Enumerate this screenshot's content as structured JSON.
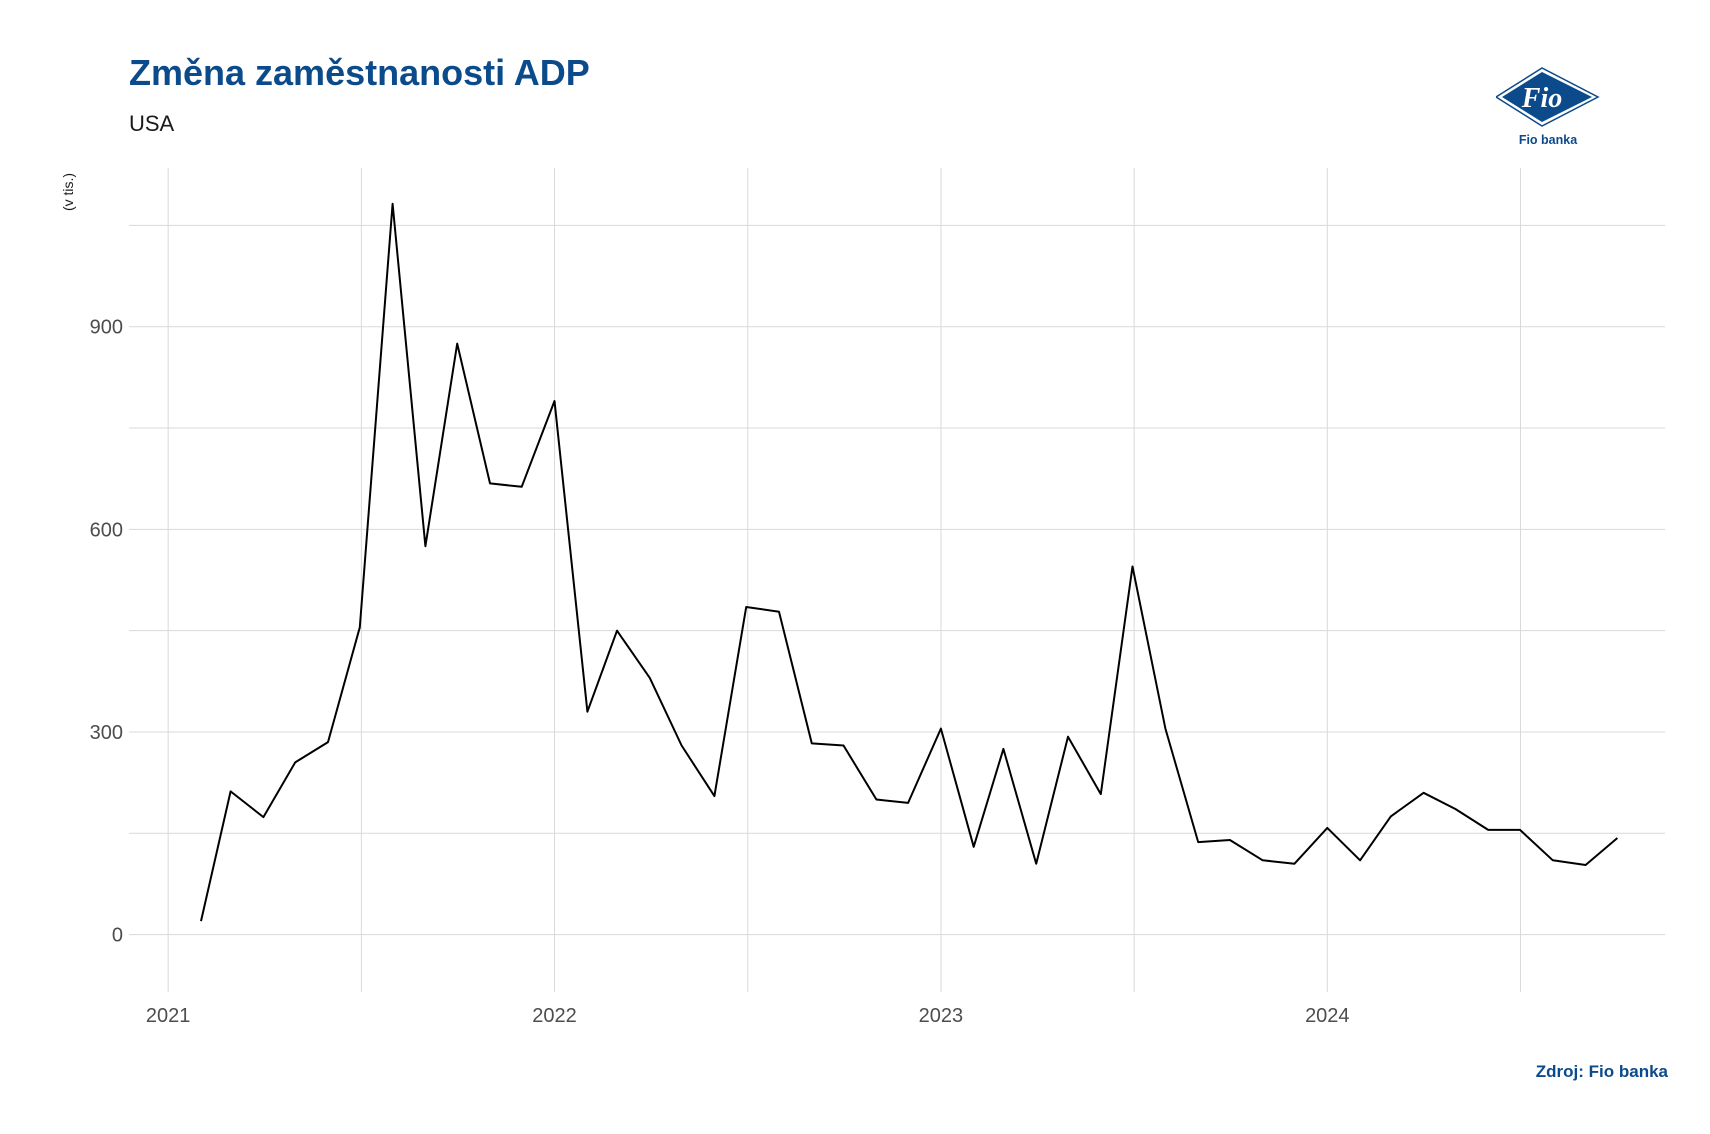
{
  "header": {
    "title": "Změna zaměstnanosti ADP",
    "subtitle": "USA"
  },
  "logo": {
    "text": "Fio",
    "caption": "Fio banka",
    "icon": "fio-logo-icon",
    "color": "#0b4a8b"
  },
  "footer": {
    "source": "Zdroj: Fio banka"
  },
  "colors": {
    "title": "#0b4a8b",
    "line": "#000000",
    "grid": "#d9d9d9",
    "axis_text": "#4d4d4d"
  },
  "chart_data": {
    "type": "line",
    "title": "Změna zaměstnanosti ADP",
    "subtitle": "USA",
    "xlabel": "",
    "ylabel": "(v tis.)",
    "grid": true,
    "legend": "none",
    "ylim": [
      -85,
      1135
    ],
    "y_ticks": [
      0,
      300,
      600,
      900
    ],
    "x_ticks": [
      "2021-01-01",
      "2022-01-01",
      "2023-01-01",
      "2024-01-01"
    ],
    "x_tick_labels": [
      "2021",
      "2022",
      "2023",
      "2024"
    ],
    "xlim": [
      "2020-11-25",
      "2024-11-15"
    ],
    "series": [
      {
        "color": "#000000",
        "x": [
          "2021-02-01",
          "2021-03-01",
          "2021-04-01",
          "2021-05-01",
          "2021-06-01",
          "2021-07-01",
          "2021-08-01",
          "2021-09-01",
          "2021-10-01",
          "2021-11-01",
          "2021-12-01",
          "2022-01-01",
          "2022-02-01",
          "2022-03-01",
          "2022-04-01",
          "2022-05-01",
          "2022-06-01",
          "2022-07-01",
          "2022-08-01",
          "2022-09-01",
          "2022-10-01",
          "2022-11-01",
          "2022-12-01",
          "2023-01-01",
          "2023-02-01",
          "2023-03-01",
          "2023-04-01",
          "2023-05-01",
          "2023-06-01",
          "2023-07-01",
          "2023-08-01",
          "2023-09-01",
          "2023-10-01",
          "2023-11-01",
          "2023-12-01",
          "2024-01-01",
          "2024-02-01",
          "2024-03-01",
          "2024-04-01",
          "2024-05-01",
          "2024-06-01",
          "2024-07-01",
          "2024-08-01",
          "2024-09-01",
          "2024-10-01"
        ],
        "values": [
          20,
          212,
          174,
          255,
          285,
          455,
          1082,
          575,
          875,
          668,
          663,
          790,
          330,
          450,
          380,
          280,
          205,
          485,
          478,
          283,
          280,
          200,
          195,
          305,
          130,
          275,
          105,
          293,
          208,
          545,
          305,
          137,
          140,
          110,
          105,
          158,
          110,
          175,
          210,
          186,
          155,
          155,
          110,
          103,
          143
        ]
      }
    ]
  }
}
